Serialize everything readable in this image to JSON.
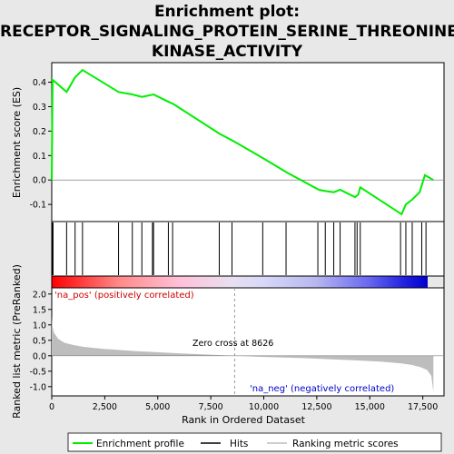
{
  "title_lines": [
    "Enrichment plot:",
    "RECEPTOR_SIGNALING_PROTEIN_SERINE_THREONINE_",
    "KINASE_ACTIVITY"
  ],
  "labels": {
    "es_ylabel": "Enrichment score (ES)",
    "metric_ylabel": "Ranked list metric (PreRanked)",
    "xlabel": "Rank in Ordered Dataset",
    "na_pos": "'na_pos' (positively correlated)",
    "na_neg": "'na_neg' (negatively correlated)",
    "zero_cross": "Zero cross at 8626"
  },
  "legend": {
    "enrichment_profile": "Enrichment profile",
    "hits": "Hits",
    "ranking_metric": "Ranking metric scores"
  },
  "colors": {
    "enrichment_line": "#00ee00",
    "hits": "#000000",
    "metric_fill": "#bdbdbd",
    "pos_band": "#ff0000",
    "neg_band": "#0000ff"
  },
  "chart_data": [
    {
      "type": "line",
      "name": "enrichment_profile",
      "ylabel": "Enrichment score (ES)",
      "xlim": [
        0,
        18500
      ],
      "ylim": [
        -0.17,
        0.48
      ],
      "yticks": [
        -0.1,
        0.0,
        0.1,
        0.2,
        0.3,
        0.4
      ],
      "x": [
        0,
        40,
        700,
        1100,
        1450,
        3150,
        3800,
        4250,
        4800,
        5500,
        5750,
        7900,
        8550,
        9950,
        11100,
        12600,
        12900,
        13300,
        13600,
        14300,
        14450,
        14550,
        16500,
        16700,
        17000,
        17350,
        17600,
        18000
      ],
      "y": [
        0.0,
        0.41,
        0.36,
        0.42,
        0.45,
        0.36,
        0.35,
        0.34,
        0.35,
        0.32,
        0.31,
        0.19,
        0.16,
        0.09,
        0.03,
        -0.04,
        -0.045,
        -0.05,
        -0.04,
        -0.07,
        -0.06,
        -0.03,
        -0.14,
        -0.1,
        -0.08,
        -0.05,
        0.02,
        0.0
      ]
    },
    {
      "type": "hits",
      "name": "hits",
      "x": [
        20,
        40,
        60,
        700,
        1100,
        1450,
        3150,
        3800,
        4250,
        4750,
        4800,
        5500,
        5700,
        7900,
        8500,
        9950,
        11050,
        12550,
        12900,
        13300,
        13600,
        14300,
        14400,
        14550,
        16450,
        16700,
        17000,
        17450,
        17650
      ]
    },
    {
      "type": "area",
      "name": "ranking_metric_scores",
      "ylabel": "Ranked list metric (PreRanked)",
      "xlim": [
        0,
        18500
      ],
      "ylim": [
        -1.3,
        2.2
      ],
      "yticks": [
        -1.0,
        -0.5,
        0.0,
        0.5,
        1.0,
        1.5,
        2.0
      ],
      "x": [
        0,
        20,
        100,
        300,
        600,
        1000,
        1500,
        2500,
        4000,
        6000,
        8626,
        10000,
        12000,
        14000,
        15500,
        16500,
        17000,
        17400,
        17700,
        17900,
        18000
      ],
      "y": [
        1.3,
        1.0,
        0.75,
        0.55,
        0.42,
        0.35,
        0.29,
        0.22,
        0.15,
        0.08,
        0.0,
        -0.04,
        -0.08,
        -0.14,
        -0.19,
        -0.25,
        -0.3,
        -0.37,
        -0.46,
        -0.65,
        -1.18
      ]
    }
  ],
  "xaxis": {
    "label": "Rank in Ordered Dataset",
    "ticks": [
      0,
      2500,
      5000,
      7500,
      10000,
      12500,
      15000,
      17500
    ],
    "tick_labels": [
      "0",
      "2,500",
      "5,000",
      "7,500",
      "10,000",
      "12,500",
      "15,000",
      "17,500"
    ]
  },
  "zero_cross_rank": 8626,
  "n_genes": 18000
}
